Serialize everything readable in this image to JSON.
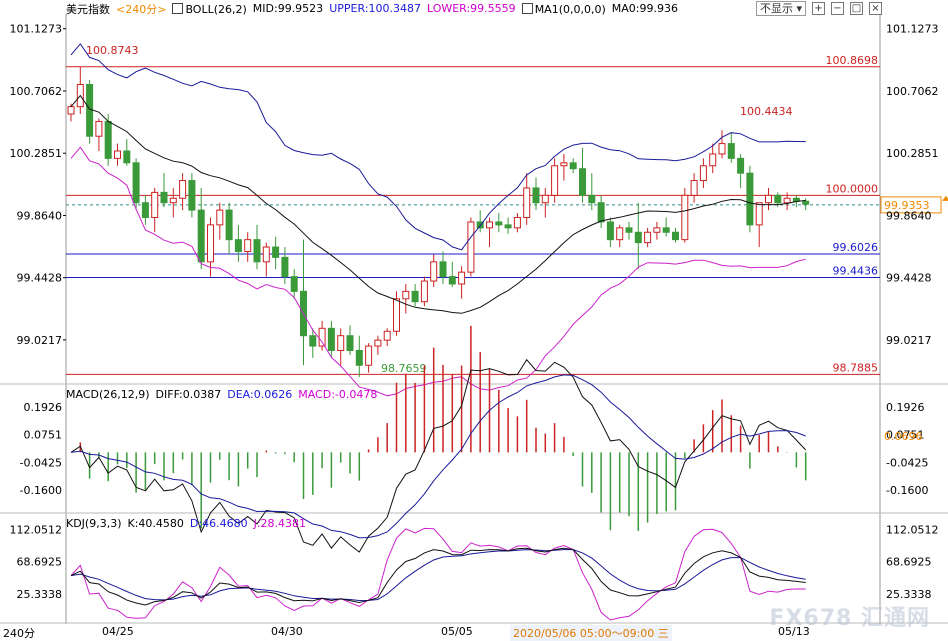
{
  "header": {
    "instrument": "美元指数",
    "period_tag": "<240分>",
    "indicator": "BOLL(26,2)",
    "mid": "MID:99.9523",
    "upper": "UPPER:100.3487",
    "lower": "LOWER:99.5559",
    "ma_label": "MA1(0,0,0,0)",
    "ma_value": "MA0:99.936"
  },
  "controls": {
    "display_select": "不显示",
    "buttons": [
      "+",
      "−",
      "□",
      "×"
    ]
  },
  "price_axis": [
    "101.1273",
    "100.7062",
    "100.2851",
    "99.8640",
    "99.4428",
    "99.0217"
  ],
  "price_lines": [
    {
      "value": 100.8698,
      "label": "100.8698",
      "color": "#cc2222"
    },
    {
      "value": 100.0,
      "label": "100.0000",
      "color": "#cc2222"
    },
    {
      "value": 99.6026,
      "label": "99.6026",
      "color": "#1a1acc"
    },
    {
      "value": 99.4436,
      "label": "99.4436",
      "color": "#1a1acc"
    },
    {
      "value": 98.7885,
      "label": "98.7885",
      "color": "#cc2222"
    }
  ],
  "annotations": {
    "high": "100.8743",
    "recent_high": "100.4434",
    "low": "98.7659",
    "current_price": "99.9353"
  },
  "macd": {
    "label": "MACD(26,12,9)",
    "diff": "DIFF:0.0387",
    "dea": "DEA:0.0626",
    "macd": "MACD:-0.0478",
    "axis": [
      "0.1926",
      "0.0751",
      "-0.0425",
      "-0.1600"
    ],
    "current": "0.0696"
  },
  "kdj": {
    "label": "KDJ(9,3,3)",
    "k": "K:40.4580",
    "d": "D:46.4680",
    "j": "J:28.4381",
    "axis": [
      "112.0512",
      "68.6925",
      "25.3338"
    ]
  },
  "footer": {
    "period": "240分",
    "dates": [
      "04/25",
      "04/30",
      "05/05",
      "05/13"
    ],
    "range": "2020/05/06 05:00～09:00 三"
  },
  "watermark": "FX678 汇通网",
  "colors": {
    "up": "#cc2222",
    "down": "#3a9a3a",
    "boll_upper": "#1a1a99",
    "boll_mid": "#111111",
    "boll_lower": "#cc22cc",
    "current": "#f08a00"
  },
  "chart_data": {
    "type": "candlestick",
    "ylim": [
      98.73,
      101.2
    ],
    "candles": [
      [
        100.55,
        100.62,
        100.5,
        100.6
      ],
      [
        100.6,
        100.87,
        100.55,
        100.75
      ],
      [
        100.75,
        100.78,
        100.35,
        100.4
      ],
      [
        100.4,
        100.52,
        100.3,
        100.5
      ],
      [
        100.5,
        100.55,
        100.2,
        100.25
      ],
      [
        100.25,
        100.35,
        100.2,
        100.3
      ],
      [
        100.3,
        100.38,
        100.2,
        100.22
      ],
      [
        100.22,
        100.25,
        99.9,
        99.95
      ],
      [
        99.95,
        100.0,
        99.8,
        99.85
      ],
      [
        99.85,
        100.05,
        99.75,
        100.02
      ],
      [
        100.02,
        100.15,
        99.92,
        99.95
      ],
      [
        99.95,
        100.05,
        99.85,
        99.98
      ],
      [
        99.98,
        100.15,
        99.9,
        100.1
      ],
      [
        100.1,
        100.15,
        99.85,
        99.9
      ],
      [
        99.9,
        100.05,
        99.5,
        99.55
      ],
      [
        99.55,
        99.85,
        99.45,
        99.8
      ],
      [
        99.8,
        99.95,
        99.7,
        99.9
      ],
      [
        99.9,
        99.95,
        99.6,
        99.7
      ],
      [
        99.7,
        99.8,
        99.55,
        99.62
      ],
      [
        99.62,
        99.75,
        99.55,
        99.7
      ],
      [
        99.7,
        99.8,
        99.5,
        99.55
      ],
      [
        99.55,
        99.68,
        99.45,
        99.65
      ],
      [
        99.65,
        99.72,
        99.5,
        99.58
      ],
      [
        99.58,
        99.65,
        99.4,
        99.45
      ],
      [
        99.45,
        99.5,
        99.3,
        99.35
      ],
      [
        99.35,
        99.7,
        98.85,
        99.05
      ],
      [
        99.05,
        99.1,
        98.9,
        98.98
      ],
      [
        98.98,
        99.15,
        98.95,
        99.1
      ],
      [
        99.1,
        99.15,
        98.9,
        98.95
      ],
      [
        98.95,
        99.1,
        98.85,
        99.05
      ],
      [
        99.05,
        99.12,
        98.92,
        98.95
      ],
      [
        98.95,
        99.05,
        98.77,
        98.85
      ],
      [
        98.85,
        99.0,
        98.8,
        98.98
      ],
      [
        98.98,
        99.05,
        98.92,
        99.02
      ],
      [
        99.02,
        99.1,
        98.98,
        99.08
      ],
      [
        99.08,
        99.35,
        99.05,
        99.3
      ],
      [
        99.3,
        99.4,
        99.2,
        99.35
      ],
      [
        99.35,
        99.4,
        99.25,
        99.28
      ],
      [
        99.28,
        99.45,
        99.25,
        99.42
      ],
      [
        99.42,
        99.6,
        99.38,
        99.55
      ],
      [
        99.55,
        99.62,
        99.4,
        99.45
      ],
      [
        99.45,
        99.55,
        99.38,
        99.4
      ],
      [
        99.4,
        99.52,
        99.3,
        99.48
      ],
      [
        99.48,
        99.85,
        99.45,
        99.82
      ],
      [
        99.82,
        99.9,
        99.75,
        99.78
      ],
      [
        99.78,
        99.85,
        99.65,
        99.82
      ],
      [
        99.82,
        99.88,
        99.75,
        99.8
      ],
      [
        99.8,
        99.85,
        99.74,
        99.78
      ],
      [
        99.78,
        99.88,
        99.75,
        99.85
      ],
      [
        99.85,
        100.15,
        99.8,
        100.05
      ],
      [
        100.05,
        100.12,
        99.9,
        99.95
      ],
      [
        99.95,
        100.05,
        99.85,
        100.0
      ],
      [
        100.0,
        100.25,
        99.95,
        100.2
      ],
      [
        100.2,
        100.28,
        100.1,
        100.22
      ],
      [
        100.22,
        100.25,
        100.15,
        100.18
      ],
      [
        100.18,
        100.32,
        99.95,
        100.0
      ],
      [
        100.0,
        100.15,
        99.9,
        99.95
      ],
      [
        99.95,
        100.0,
        99.78,
        99.82
      ],
      [
        99.82,
        99.85,
        99.65,
        99.7
      ],
      [
        99.7,
        99.8,
        99.65,
        99.78
      ],
      [
        99.78,
        99.82,
        99.7,
        99.75
      ],
      [
        99.75,
        99.95,
        99.5,
        99.68
      ],
      [
        99.68,
        99.78,
        99.65,
        99.75
      ],
      [
        99.75,
        99.82,
        99.7,
        99.78
      ],
      [
        99.78,
        99.85,
        99.72,
        99.75
      ],
      [
        99.75,
        99.78,
        99.68,
        99.7
      ],
      [
        99.7,
        100.05,
        99.68,
        100.0
      ],
      [
        100.0,
        100.15,
        99.95,
        100.1
      ],
      [
        100.1,
        100.25,
        100.05,
        100.2
      ],
      [
        100.2,
        100.35,
        100.15,
        100.28
      ],
      [
        100.28,
        100.44,
        100.25,
        100.35
      ],
      [
        100.35,
        100.42,
        100.22,
        100.25
      ],
      [
        100.25,
        100.28,
        100.05,
        100.15
      ],
      [
        100.15,
        100.2,
        99.75,
        99.8
      ],
      [
        99.8,
        99.95,
        99.65,
        99.95
      ],
      [
        99.95,
        100.05,
        99.9,
        100.0
      ],
      [
        100.0,
        100.02,
        99.92,
        99.95
      ],
      [
        99.95,
        100.02,
        99.9,
        99.98
      ],
      [
        99.98,
        100.0,
        99.92,
        99.96
      ],
      [
        99.96,
        99.98,
        99.9,
        99.94
      ]
    ]
  }
}
